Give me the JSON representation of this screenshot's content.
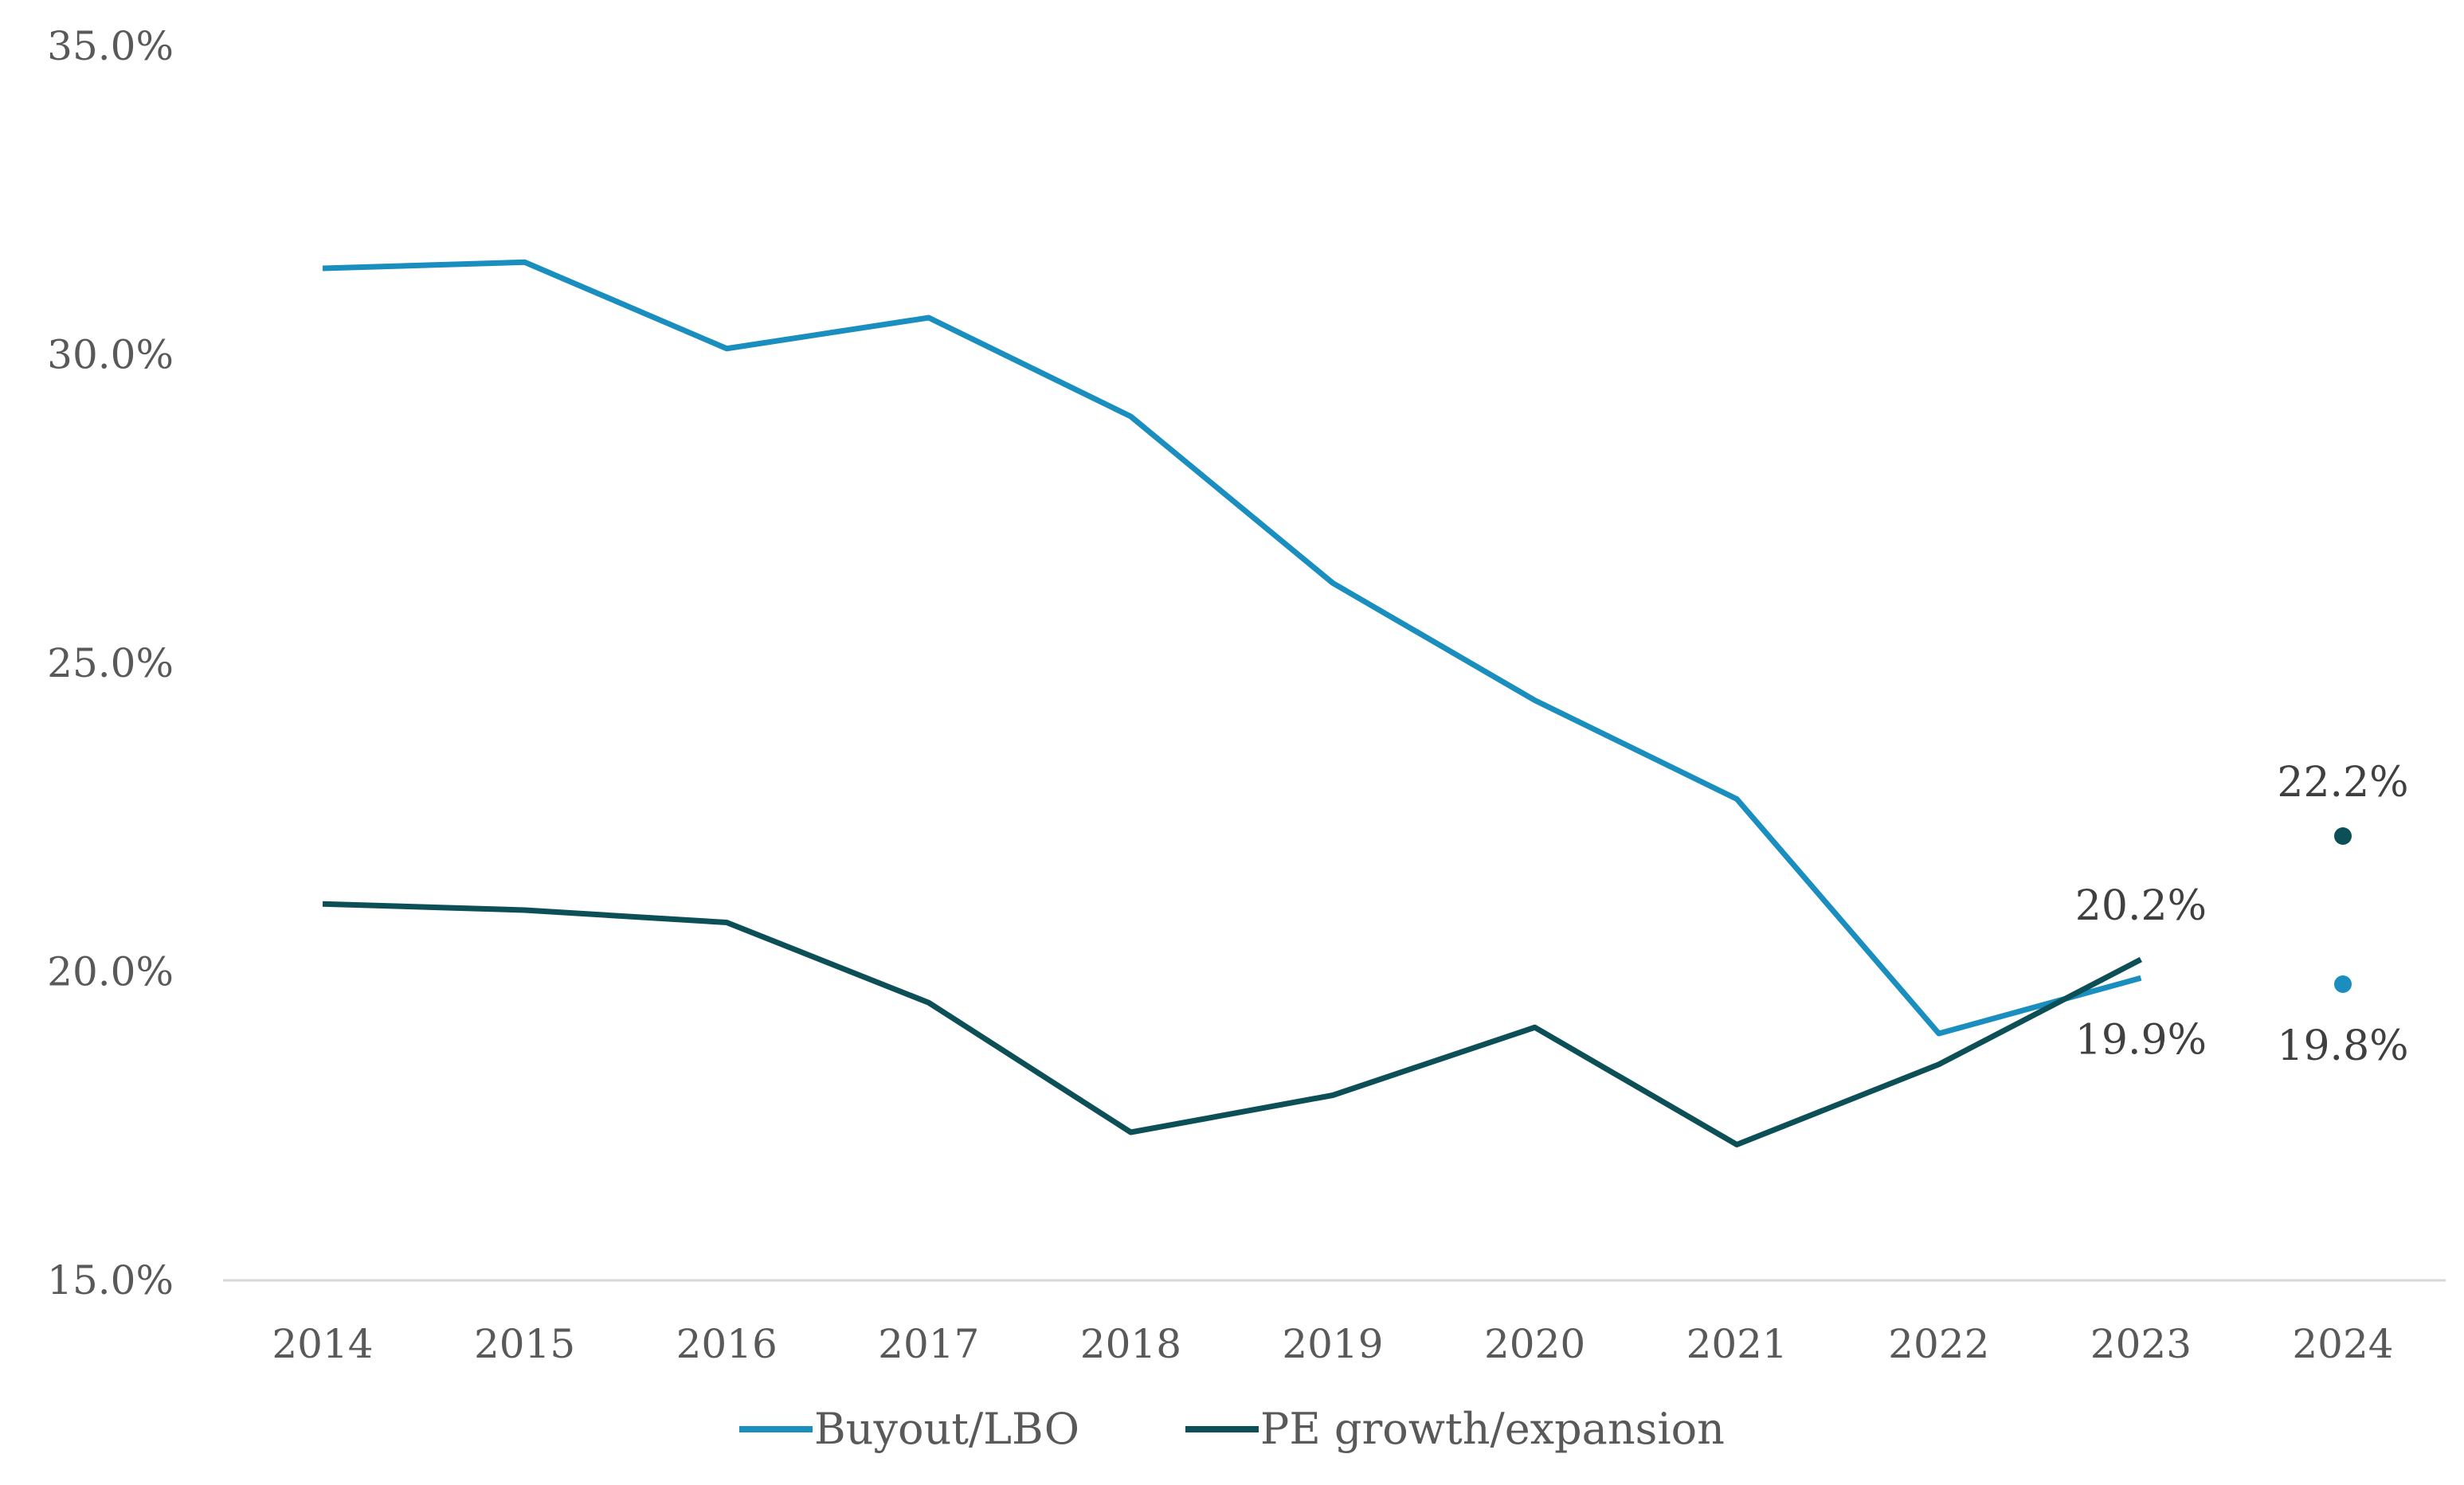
{
  "chart_data": {
    "type": "line",
    "title": "",
    "xlabel": "",
    "ylabel": "",
    "categories": [
      "2014",
      "2015",
      "2016",
      "2017",
      "2018",
      "2019",
      "2020",
      "2021",
      "2022",
      "2023",
      "2024"
    ],
    "ylim": [
      15,
      35
    ],
    "y_ticks": [
      15,
      20,
      25,
      30,
      35
    ],
    "y_tick_labels": [
      "15.0%",
      "20.0%",
      "25.0%",
      "30.0%",
      "35.0%"
    ],
    "grid": false,
    "legend_position": "bottom-center",
    "series": [
      {
        "name": "Buyout/LBO",
        "color": "#1a8fbf",
        "line_values": [
          31.4,
          31.5,
          30.1,
          30.6,
          29.0,
          26.3,
          24.4,
          22.8,
          19.0,
          19.9
        ],
        "point_values": [
          {
            "x": "2024",
            "y": 19.8
          }
        ]
      },
      {
        "name": "PE growth/expansion",
        "color": "#0d4f57",
        "line_values": [
          21.1,
          21.0,
          20.8,
          19.5,
          17.4,
          18.0,
          19.1,
          17.2,
          18.5,
          20.2
        ],
        "point_values": [
          {
            "x": "2024",
            "y": 22.2
          }
        ]
      }
    ],
    "data_labels": [
      {
        "x": "2023",
        "series": "PE growth/expansion",
        "text": "20.2%"
      },
      {
        "x": "2023",
        "series": "Buyout/LBO",
        "text": "19.9%"
      },
      {
        "x": "2024",
        "series": "PE growth/expansion",
        "text": "22.2%"
      },
      {
        "x": "2024",
        "series": "Buyout/LBO",
        "text": "19.8%"
      }
    ]
  }
}
